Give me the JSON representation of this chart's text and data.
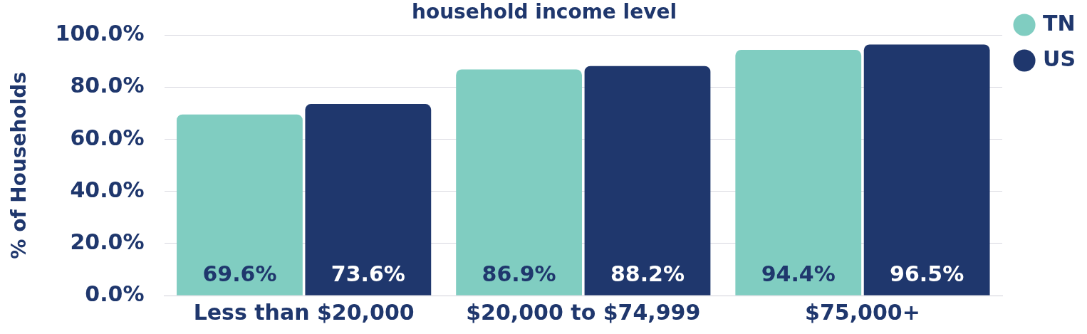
{
  "chart_data": {
    "type": "bar",
    "title": "household income level",
    "ylabel": "% of Households",
    "categories": [
      "Less than $20,000",
      "$20,000 to $74,999",
      "$75,000+"
    ],
    "series": [
      {
        "name": "TN",
        "color": "#80cdc1",
        "values": [
          69.6,
          86.9,
          94.4
        ],
        "value_labels": [
          "69.6%",
          "86.9%",
          "94.4%"
        ]
      },
      {
        "name": "US",
        "color": "#1f376d",
        "values": [
          73.6,
          88.2,
          96.5
        ],
        "value_labels": [
          "73.6%",
          "88.2%",
          "96.5%"
        ]
      }
    ],
    "ylim": [
      0,
      100
    ],
    "yticks": [
      {
        "value": 0,
        "label": "0.0%"
      },
      {
        "value": 20,
        "label": "20.0%"
      },
      {
        "value": 40,
        "label": "40.0%"
      },
      {
        "value": 60,
        "label": "60.0%"
      },
      {
        "value": 80,
        "label": "80.0%"
      },
      {
        "value": 100,
        "label": "100.0%"
      }
    ],
    "grid": "y",
    "legend": "top right"
  }
}
